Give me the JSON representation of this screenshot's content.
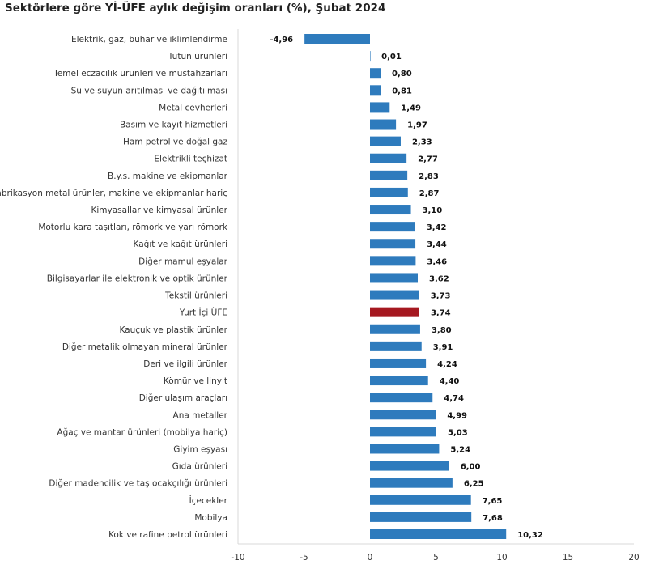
{
  "chart_data": {
    "type": "bar",
    "orientation": "horizontal",
    "title": "Sektörlere göre Yİ-ÜFE aylık değişim oranları (%), Şubat 2024",
    "xlabel": "",
    "ylabel": "",
    "xlim": [
      -10,
      20
    ],
    "xticks": [
      -10,
      -5,
      0,
      5,
      10,
      15,
      20
    ],
    "grid": false,
    "categories": [
      "Elektrik, gaz, buhar ve iklimlendirme",
      "Tütün ürünleri",
      "Temel eczacılık ürünleri ve müstahzarları",
      "Su ve suyun arıtılması ve dağıtılması",
      "Metal cevherleri",
      "Basım ve kayıt hizmetleri",
      "Ham petrol ve doğal gaz",
      "Elektrikli teçhizat",
      "B.y.s. makine ve ekipmanlar",
      "Fabrikasyon metal ürünler, makine ve ekipmanlar hariç",
      "Kimyasallar ve kimyasal ürünler",
      "Motorlu kara taşıtları, römork ve yarı römork",
      "Kağıt ve kağıt ürünleri",
      "Diğer mamul eşyalar",
      "Bilgisayarlar ile elektronik ve optik ürünler",
      "Tekstil ürünleri",
      "Yurt İçi ÜFE",
      "Kauçuk ve plastik ürünler",
      "Diğer metalik olmayan mineral ürünler",
      "Deri ve ilgili ürünler",
      "Kömür ve linyit",
      "Diğer ulaşım araçları",
      "Ana metaller",
      "Ağaç ve mantar ürünleri (mobilya hariç)",
      "Giyim eşyası",
      "Gıda ürünleri",
      "Diğer madencilik ve taş ocakçılığı ürünleri",
      "İçecekler",
      "Mobilya",
      "Kok ve rafine petrol ürünleri"
    ],
    "values": [
      -4.96,
      0.01,
      0.8,
      0.81,
      1.49,
      1.97,
      2.33,
      2.77,
      2.83,
      2.87,
      3.1,
      3.42,
      3.44,
      3.46,
      3.62,
      3.73,
      3.74,
      3.8,
      3.91,
      4.24,
      4.4,
      4.74,
      4.99,
      5.03,
      5.24,
      6.0,
      6.25,
      7.65,
      7.68,
      10.32
    ],
    "data_labels": [
      "-4,96",
      "0,01",
      "0,80",
      "0,81",
      "1,49",
      "1,97",
      "2,33",
      "2,77",
      "2,83",
      "2,87",
      "3,10",
      "3,42",
      "3,44",
      "3,46",
      "3,62",
      "3,73",
      "3,74",
      "3,80",
      "3,91",
      "4,24",
      "4,40",
      "4,74",
      "4,99",
      "5,03",
      "5,24",
      "6,00",
      "6,25",
      "7,65",
      "7,68",
      "10,32"
    ],
    "highlight_category": "Yurt İçi ÜFE",
    "colors": {
      "bar": "#2e7bbd",
      "highlight": "#a51820"
    }
  }
}
